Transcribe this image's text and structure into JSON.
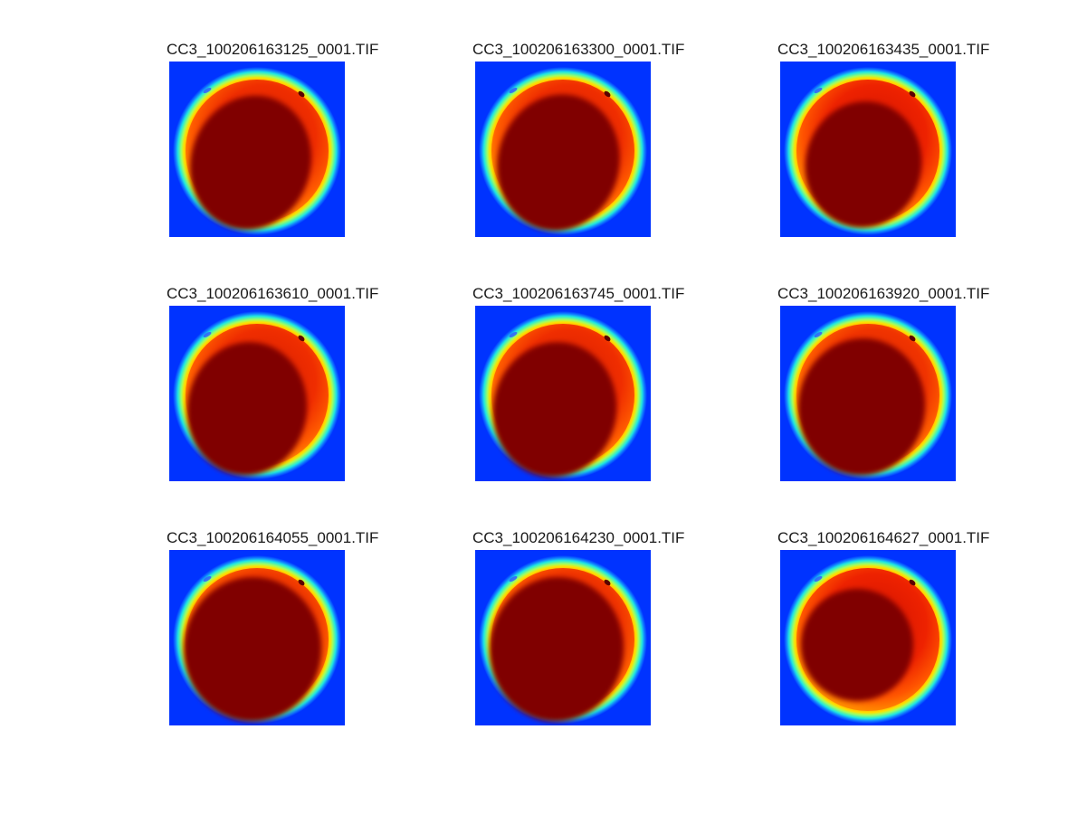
{
  "figure": {
    "panels": [
      {
        "title": "CC3_100206163125_0001.TIF",
        "variant": 0
      },
      {
        "title": "CC3_100206163300_0001.TIF",
        "variant": 1
      },
      {
        "title": "CC3_100206163435_0001.TIF",
        "variant": 2
      },
      {
        "title": "CC3_100206163610_0001.TIF",
        "variant": 3
      },
      {
        "title": "CC3_100206163745_0001.TIF",
        "variant": 4
      },
      {
        "title": "CC3_100206163920_0001.TIF",
        "variant": 5
      },
      {
        "title": "CC3_100206164055_0001.TIF",
        "variant": 6
      },
      {
        "title": "CC3_100206164230_0001.TIF",
        "variant": 7
      },
      {
        "title": "CC3_100206164627_0001.TIF",
        "variant": 8
      }
    ],
    "colors": {
      "background": "#0033ff",
      "core": "#800000",
      "colormap": "jet"
    }
  }
}
